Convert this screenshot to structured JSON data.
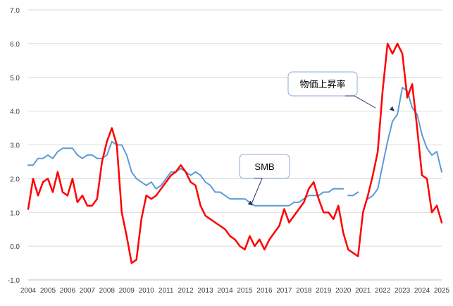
{
  "chart_data": {
    "type": "line",
    "title": "",
    "xlabel": "",
    "ylabel": "",
    "ylim": [
      -1.0,
      7.0
    ],
    "y_ticks": [
      "-1.0",
      "0.0",
      "1.0",
      "2.0",
      "3.0",
      "4.0",
      "5.0",
      "6.0",
      "7.0"
    ],
    "x_ticks": [
      "2004",
      "2005",
      "2006",
      "2007",
      "2008",
      "2009",
      "2010",
      "2011",
      "2012",
      "2013",
      "2014",
      "2015",
      "2016",
      "2017",
      "2018",
      "2019",
      "2020",
      "2021",
      "2022",
      "2023",
      "2024",
      "2025"
    ],
    "x_range": [
      2004.0,
      2025.0
    ],
    "grid": "horizontal",
    "series": [
      {
        "name": "SMB",
        "color": "#5B9BD5",
        "points": [
          [
            2004.0,
            2.4
          ],
          [
            2004.25,
            2.4
          ],
          [
            2004.5,
            2.6
          ],
          [
            2004.75,
            2.6
          ],
          [
            2005.0,
            2.7
          ],
          [
            2005.25,
            2.6
          ],
          [
            2005.5,
            2.8
          ],
          [
            2005.75,
            2.9
          ],
          [
            2006.0,
            2.9
          ],
          [
            2006.25,
            2.9
          ],
          [
            2006.5,
            2.7
          ],
          [
            2006.75,
            2.6
          ],
          [
            2007.0,
            2.7
          ],
          [
            2007.25,
            2.7
          ],
          [
            2007.5,
            2.6
          ],
          [
            2007.75,
            2.6
          ],
          [
            2008.0,
            2.7
          ],
          [
            2008.25,
            3.1
          ],
          [
            2008.5,
            3.0
          ],
          [
            2008.75,
            3.0
          ],
          [
            2009.0,
            2.7
          ],
          [
            2009.25,
            2.2
          ],
          [
            2009.5,
            2.0
          ],
          [
            2009.75,
            1.9
          ],
          [
            2010.0,
            1.8
          ],
          [
            2010.25,
            1.9
          ],
          [
            2010.5,
            1.7
          ],
          [
            2010.75,
            1.8
          ],
          [
            2011.0,
            2.0
          ],
          [
            2011.25,
            2.2
          ],
          [
            2011.5,
            2.2
          ],
          [
            2011.75,
            2.3
          ],
          [
            2012.0,
            2.2
          ],
          [
            2012.25,
            2.1
          ],
          [
            2012.5,
            2.2
          ],
          [
            2012.75,
            2.1
          ],
          [
            2013.0,
            1.9
          ],
          [
            2013.25,
            1.8
          ],
          [
            2013.5,
            1.6
          ],
          [
            2013.75,
            1.6
          ],
          [
            2014.0,
            1.5
          ],
          [
            2014.25,
            1.4
          ],
          [
            2014.5,
            1.4
          ],
          [
            2014.75,
            1.4
          ],
          [
            2015.0,
            1.4
          ],
          [
            2015.25,
            1.3
          ],
          [
            2015.5,
            1.2
          ],
          [
            2015.75,
            1.2
          ],
          [
            2016.0,
            1.2
          ],
          [
            2016.25,
            1.2
          ],
          [
            2016.5,
            1.2
          ],
          [
            2016.75,
            1.2
          ],
          [
            2017.0,
            1.2
          ],
          [
            2017.25,
            1.2
          ],
          [
            2017.5,
            1.3
          ],
          [
            2017.75,
            1.3
          ],
          [
            2018.0,
            1.4
          ],
          [
            2018.25,
            1.5
          ],
          [
            2018.5,
            1.5
          ],
          [
            2018.75,
            1.5
          ],
          [
            2019.0,
            1.6
          ],
          [
            2019.25,
            1.6
          ],
          [
            2019.5,
            1.7
          ],
          [
            2019.75,
            1.7
          ],
          [
            2020.0,
            1.7
          ],
          null,
          [
            2020.25,
            1.5
          ],
          [
            2020.5,
            1.5
          ],
          [
            2020.75,
            1.6
          ],
          null,
          [
            2021.25,
            1.4
          ],
          [
            2021.5,
            1.5
          ],
          [
            2021.75,
            1.7
          ],
          [
            2022.0,
            2.4
          ],
          [
            2022.25,
            3.1
          ],
          [
            2022.5,
            3.7
          ],
          [
            2022.75,
            3.9
          ],
          [
            2023.0,
            4.7
          ],
          [
            2023.25,
            4.6
          ],
          [
            2023.5,
            4.1
          ],
          [
            2023.75,
            3.9
          ],
          [
            2024.0,
            3.3
          ],
          [
            2024.25,
            2.9
          ],
          [
            2024.5,
            2.7
          ],
          [
            2024.75,
            2.8
          ],
          [
            2025.0,
            2.2
          ]
        ]
      },
      {
        "name": "物価上昇率",
        "color": "#FF0000",
        "points": [
          [
            2004.0,
            1.1
          ],
          [
            2004.25,
            2.0
          ],
          [
            2004.5,
            1.5
          ],
          [
            2004.75,
            1.9
          ],
          [
            2005.0,
            2.0
          ],
          [
            2005.25,
            1.6
          ],
          [
            2005.5,
            2.2
          ],
          [
            2005.75,
            1.6
          ],
          [
            2006.0,
            1.5
          ],
          [
            2006.25,
            2.0
          ],
          [
            2006.5,
            1.3
          ],
          [
            2006.75,
            1.5
          ],
          [
            2007.0,
            1.2
          ],
          [
            2007.25,
            1.2
          ],
          [
            2007.5,
            1.4
          ],
          [
            2007.75,
            2.5
          ],
          [
            2008.0,
            3.1
          ],
          [
            2008.25,
            3.5
          ],
          [
            2008.5,
            3.0
          ],
          [
            2008.75,
            1.0
          ],
          [
            2009.0,
            0.3
          ],
          [
            2009.25,
            -0.5
          ],
          [
            2009.5,
            -0.4
          ],
          [
            2009.75,
            0.8
          ],
          [
            2010.0,
            1.5
          ],
          [
            2010.25,
            1.4
          ],
          [
            2010.5,
            1.5
          ],
          [
            2010.75,
            1.7
          ],
          [
            2011.0,
            1.9
          ],
          [
            2011.25,
            2.1
          ],
          [
            2011.5,
            2.2
          ],
          [
            2011.75,
            2.4
          ],
          [
            2012.0,
            2.2
          ],
          [
            2012.25,
            1.9
          ],
          [
            2012.5,
            1.8
          ],
          [
            2012.75,
            1.2
          ],
          [
            2013.0,
            0.9
          ],
          [
            2013.25,
            0.8
          ],
          [
            2013.5,
            0.7
          ],
          [
            2013.75,
            0.6
          ],
          [
            2014.0,
            0.5
          ],
          [
            2014.25,
            0.3
          ],
          [
            2014.5,
            0.2
          ],
          [
            2014.75,
            0.0
          ],
          [
            2015.0,
            -0.1
          ],
          [
            2015.25,
            0.3
          ],
          [
            2015.5,
            0.0
          ],
          [
            2015.75,
            0.2
          ],
          [
            2016.0,
            -0.1
          ],
          [
            2016.25,
            0.2
          ],
          [
            2016.5,
            0.4
          ],
          [
            2016.75,
            0.6
          ],
          [
            2017.0,
            1.1
          ],
          [
            2017.25,
            0.7
          ],
          [
            2017.5,
            0.9
          ],
          [
            2017.75,
            1.1
          ],
          [
            2018.0,
            1.3
          ],
          [
            2018.25,
            1.7
          ],
          [
            2018.5,
            1.9
          ],
          [
            2018.75,
            1.4
          ],
          [
            2019.0,
            1.0
          ],
          [
            2019.25,
            1.0
          ],
          [
            2019.5,
            0.8
          ],
          [
            2019.75,
            1.2
          ],
          [
            2020.0,
            0.4
          ],
          [
            2020.25,
            -0.1
          ],
          [
            2020.5,
            -0.2
          ],
          [
            2020.75,
            -0.3
          ],
          [
            2021.0,
            1.0
          ],
          [
            2021.25,
            1.5
          ],
          [
            2021.5,
            2.1
          ],
          [
            2021.75,
            2.8
          ],
          [
            2022.0,
            4.6
          ],
          [
            2022.25,
            6.0
          ],
          [
            2022.5,
            5.7
          ],
          [
            2022.75,
            6.0
          ],
          [
            2023.0,
            5.7
          ],
          [
            2023.25,
            4.4
          ],
          [
            2023.5,
            4.8
          ],
          [
            2023.75,
            3.5
          ],
          [
            2024.0,
            2.1
          ],
          [
            2024.25,
            2.0
          ],
          [
            2024.5,
            1.0
          ],
          [
            2024.75,
            1.2
          ],
          [
            2025.0,
            0.7
          ]
        ]
      }
    ],
    "annotations": [
      {
        "text": "SMB",
        "series": "SMB",
        "points_to": [
          2015.4,
          1.2
        ]
      },
      {
        "text": "物価上昇率",
        "series": "SMB",
        "points_to": [
          2022.6,
          4.0
        ]
      }
    ]
  }
}
